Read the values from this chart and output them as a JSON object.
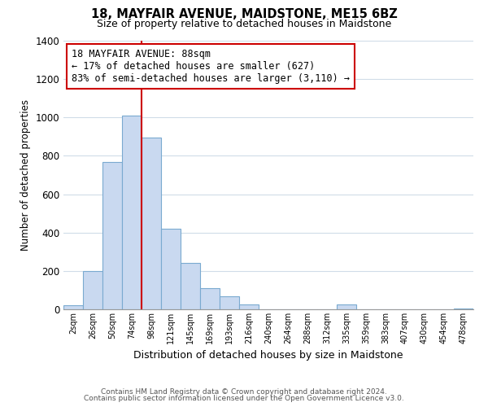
{
  "title": "18, MAYFAIR AVENUE, MAIDSTONE, ME15 6BZ",
  "subtitle": "Size of property relative to detached houses in Maidstone",
  "xlabel": "Distribution of detached houses by size in Maidstone",
  "ylabel": "Number of detached properties",
  "bar_labels": [
    "2sqm",
    "26sqm",
    "50sqm",
    "74sqm",
    "98sqm",
    "121sqm",
    "145sqm",
    "169sqm",
    "193sqm",
    "216sqm",
    "240sqm",
    "264sqm",
    "288sqm",
    "312sqm",
    "335sqm",
    "359sqm",
    "383sqm",
    "407sqm",
    "430sqm",
    "454sqm",
    "478sqm"
  ],
  "bar_values": [
    20,
    200,
    770,
    1010,
    895,
    420,
    240,
    110,
    70,
    25,
    0,
    0,
    0,
    0,
    25,
    0,
    0,
    0,
    0,
    0,
    5
  ],
  "bar_color": "#c9d9f0",
  "bar_edge_color": "#7aaad0",
  "vline_color": "#cc0000",
  "ylim": [
    0,
    1400
  ],
  "yticks": [
    0,
    200,
    400,
    600,
    800,
    1000,
    1200,
    1400
  ],
  "annotation_title": "18 MAYFAIR AVENUE: 88sqm",
  "annotation_line1": "← 17% of detached houses are smaller (627)",
  "annotation_line2": "83% of semi-detached houses are larger (3,110) →",
  "annotation_box_color": "#ffffff",
  "annotation_box_edge": "#cc0000",
  "footer1": "Contains HM Land Registry data © Crown copyright and database right 2024.",
  "footer2": "Contains public sector information licensed under the Open Government Licence v3.0.",
  "background_color": "#ffffff",
  "grid_color": "#d0dce8"
}
